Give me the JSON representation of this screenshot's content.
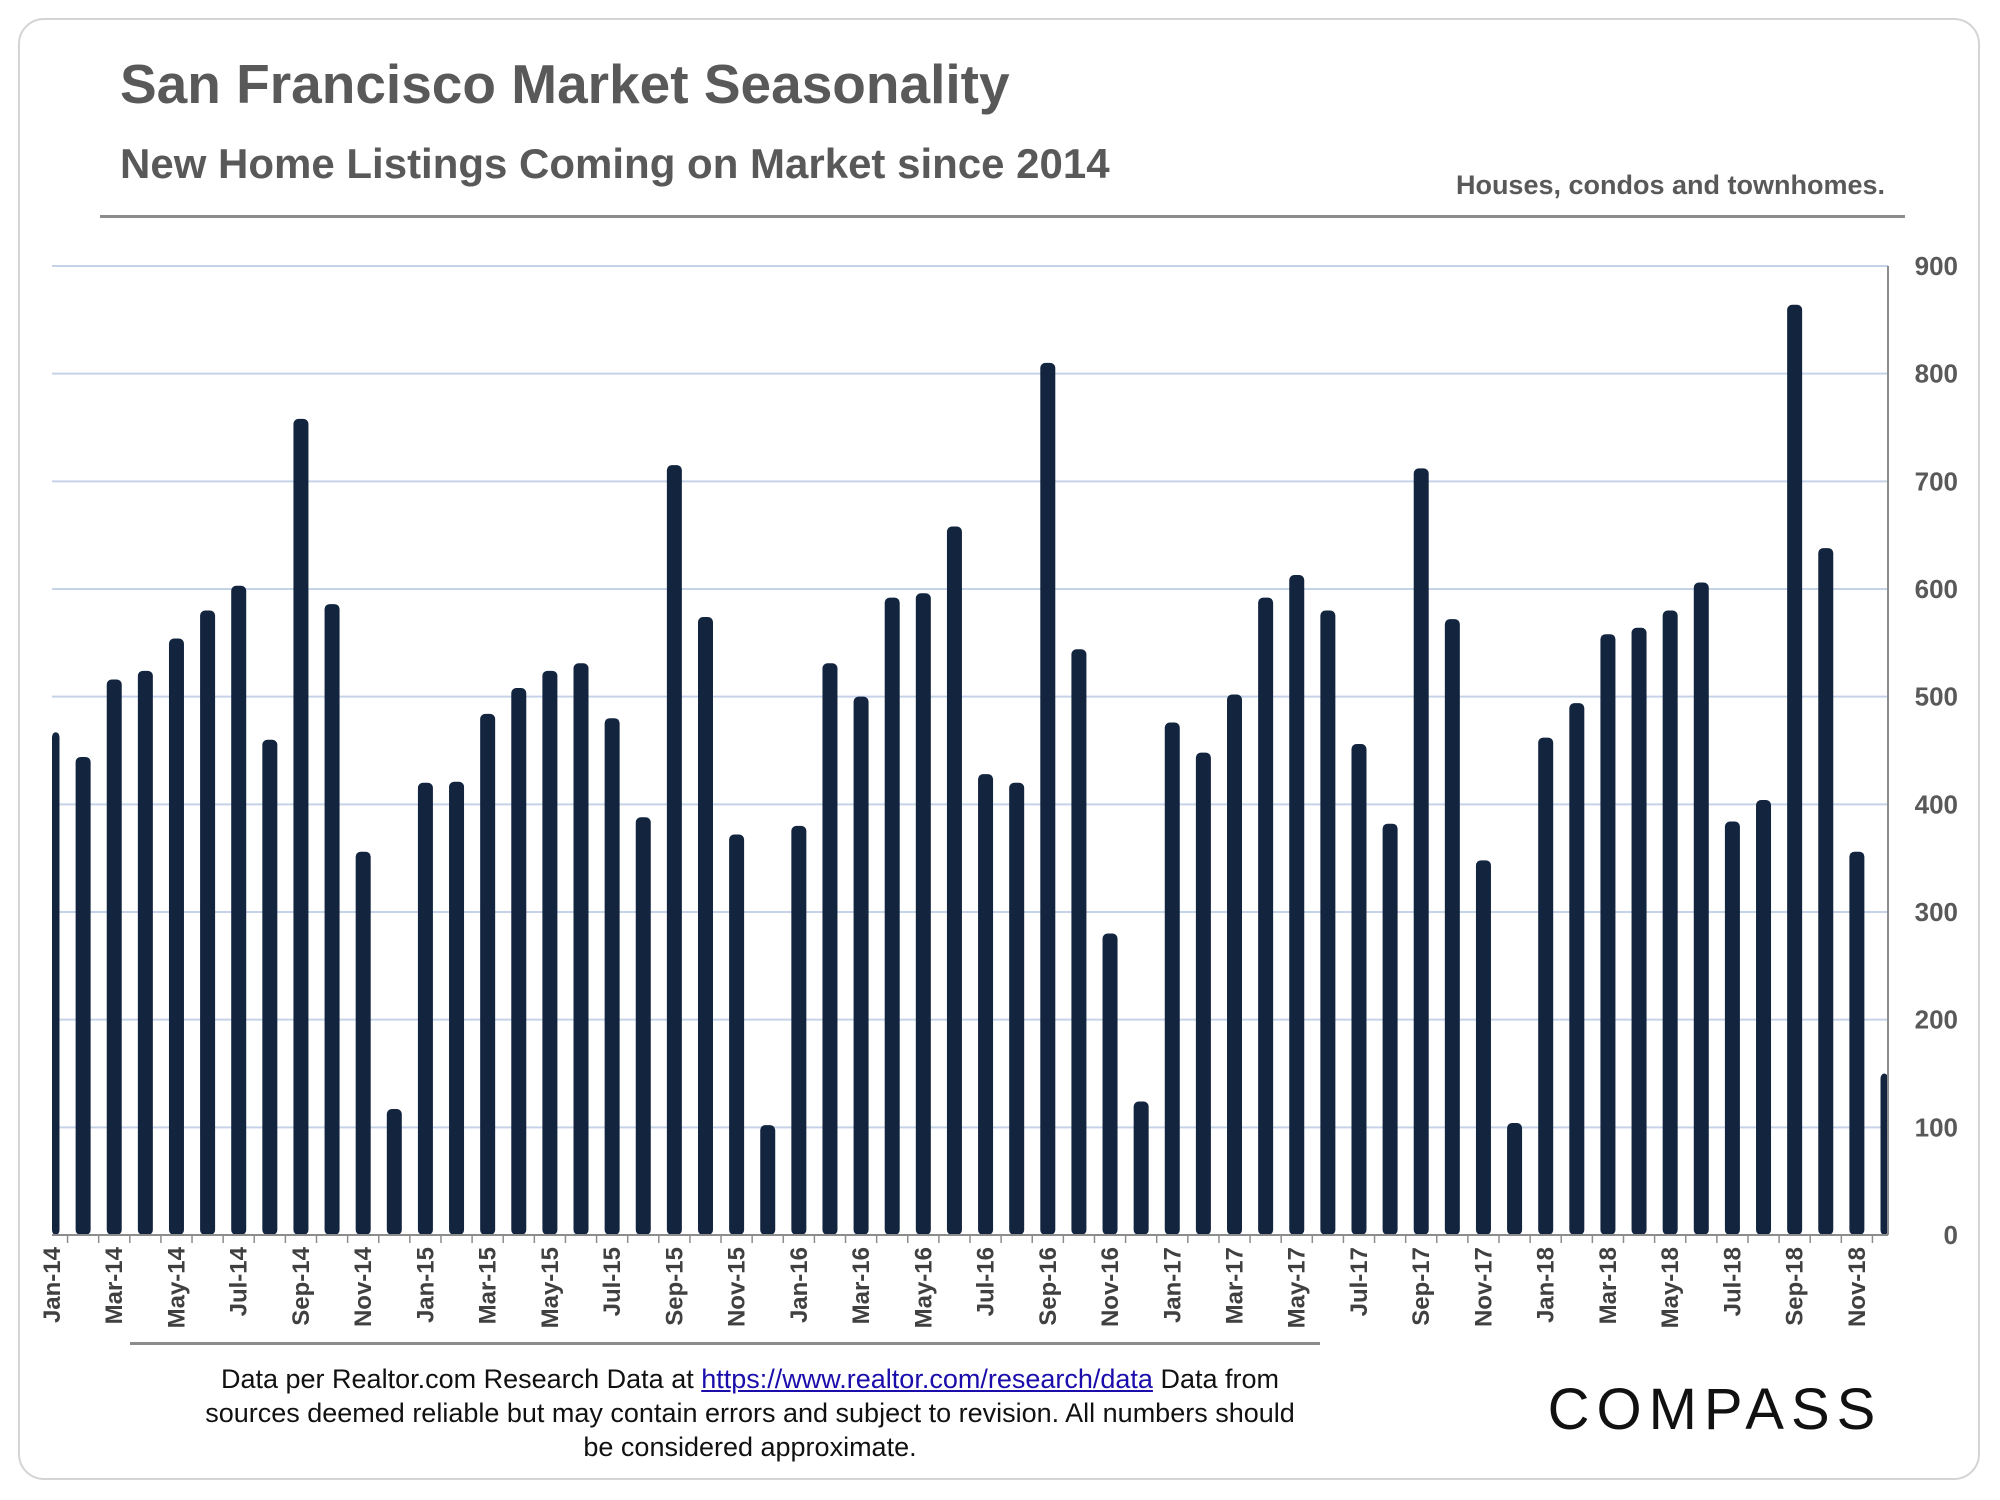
{
  "header": {
    "title": "San Francisco Market Seasonality",
    "subtitle": "New Home Listings Coming on Market since 2014",
    "note": "Houses, condos and townhomes."
  },
  "footer": {
    "text_before": "Data per Realtor.com Research Data at",
    "link": "https://www.realtor.com/research/data",
    "text_after": "Data from sources deemed reliable but may contain errors and subject to revision.  All numbers should be considered approximate."
  },
  "logo": {
    "text": "COMPASS"
  },
  "colors": {
    "bar": "#13243f",
    "grid": "#c5d3e8",
    "text": "#595959"
  },
  "chart_data": {
    "type": "bar",
    "title": "San Francisco Market Seasonality",
    "subtitle": "New Home Listings Coming on Market since 2014",
    "ylim": [
      0,
      900
    ],
    "yticks": [
      0,
      100,
      200,
      300,
      400,
      500,
      600,
      700,
      800,
      900
    ],
    "y_axis_position": "right",
    "grid": true,
    "categories": [
      "Jan-14",
      "Feb-14",
      "Mar-14",
      "Apr-14",
      "May-14",
      "Jun-14",
      "Jul-14",
      "Aug-14",
      "Sep-14",
      "Oct-14",
      "Nov-14",
      "Dec-14",
      "Jan-15",
      "Feb-15",
      "Mar-15",
      "Apr-15",
      "May-15",
      "Jun-15",
      "Jul-15",
      "Aug-15",
      "Sep-15",
      "Oct-15",
      "Nov-15",
      "Dec-15",
      "Jan-16",
      "Feb-16",
      "Mar-16",
      "Apr-16",
      "May-16",
      "Jun-16",
      "Jul-16",
      "Aug-16",
      "Sep-16",
      "Oct-16",
      "Nov-16",
      "Dec-16",
      "Jan-17",
      "Feb-17",
      "Mar-17",
      "Apr-17",
      "May-17",
      "Jun-17",
      "Jul-17",
      "Aug-17",
      "Sep-17",
      "Oct-17",
      "Nov-17",
      "Dec-17",
      "Jan-18",
      "Feb-18",
      "Mar-18",
      "Apr-18",
      "May-18",
      "Jun-18",
      "Jul-18",
      "Aug-18",
      "Sep-18",
      "Oct-18",
      "Nov-18",
      "Dec-18"
    ],
    "tick_labels": [
      "Jan-14",
      "Mar-14",
      "May-14",
      "Jul-14",
      "Sep-14",
      "Nov-14",
      "Jan-15",
      "Mar-15",
      "May-15",
      "Jul-15",
      "Sep-15",
      "Nov-15",
      "Jan-16",
      "Mar-16",
      "May-16",
      "Jul-16",
      "Sep-16",
      "Nov-16",
      "Jan-17",
      "Mar-17",
      "May-17",
      "Jul-17",
      "Sep-17",
      "Nov-17",
      "Jan-18",
      "Mar-18",
      "May-18",
      "Jul-18",
      "Sep-18",
      "Nov-18"
    ],
    "values": [
      467,
      444,
      516,
      524,
      554,
      580,
      603,
      460,
      758,
      586,
      356,
      117,
      420,
      421,
      484,
      508,
      524,
      531,
      480,
      388,
      715,
      574,
      372,
      102,
      380,
      531,
      500,
      592,
      596,
      658,
      428,
      420,
      810,
      544,
      280,
      124,
      476,
      448,
      502,
      592,
      613,
      580,
      456,
      382,
      712,
      572,
      348,
      104,
      462,
      494,
      558,
      564,
      580,
      606,
      384,
      404,
      864,
      638,
      356,
      150
    ],
    "xlabel": "",
    "ylabel": ""
  }
}
